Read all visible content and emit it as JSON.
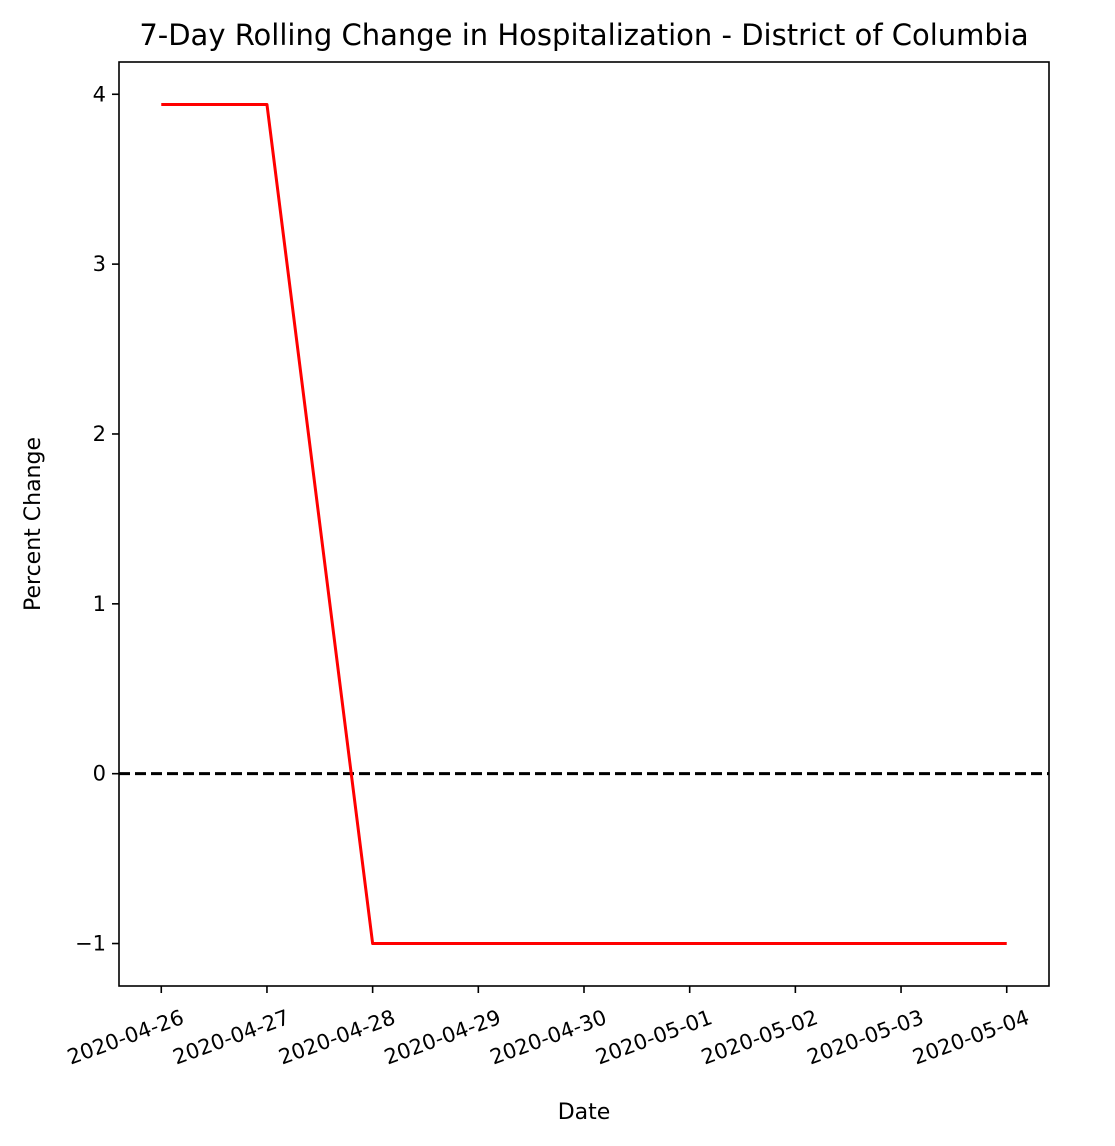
{
  "chart_data": {
    "type": "line",
    "title": "7-Day Rolling Change in Hospitalization - District of Columbia",
    "xlabel": "Date",
    "ylabel": "Percent Change",
    "x": [
      "2020-04-26",
      "2020-04-27",
      "2020-04-28",
      "2020-04-29",
      "2020-04-30",
      "2020-05-01",
      "2020-05-02",
      "2020-05-03",
      "2020-05-04"
    ],
    "series": [
      {
        "values": [
          3.94,
          3.94,
          -1.0,
          -1.0,
          -1.0,
          -1.0,
          -1.0,
          -1.0,
          -1.0
        ],
        "color": "#ff0000"
      }
    ],
    "reference_line": {
      "y": 0,
      "style": "dashed",
      "color": "#000000"
    },
    "xticks": [
      "2020-04-26",
      "2020-04-27",
      "2020-04-28",
      "2020-04-29",
      "2020-04-30",
      "2020-05-01",
      "2020-05-02",
      "2020-05-03",
      "2020-05-04"
    ],
    "yticks": [
      {
        "value": -1,
        "label": "−1"
      },
      {
        "value": 0,
        "label": "0"
      },
      {
        "value": 1,
        "label": "1"
      },
      {
        "value": 2,
        "label": "2"
      },
      {
        "value": 3,
        "label": "3"
      },
      {
        "value": 4,
        "label": "4"
      }
    ],
    "ylim": [
      -1.25,
      4.19
    ],
    "xlim": [
      -0.4,
      8.4
    ],
    "grid": false,
    "legend": "none"
  }
}
